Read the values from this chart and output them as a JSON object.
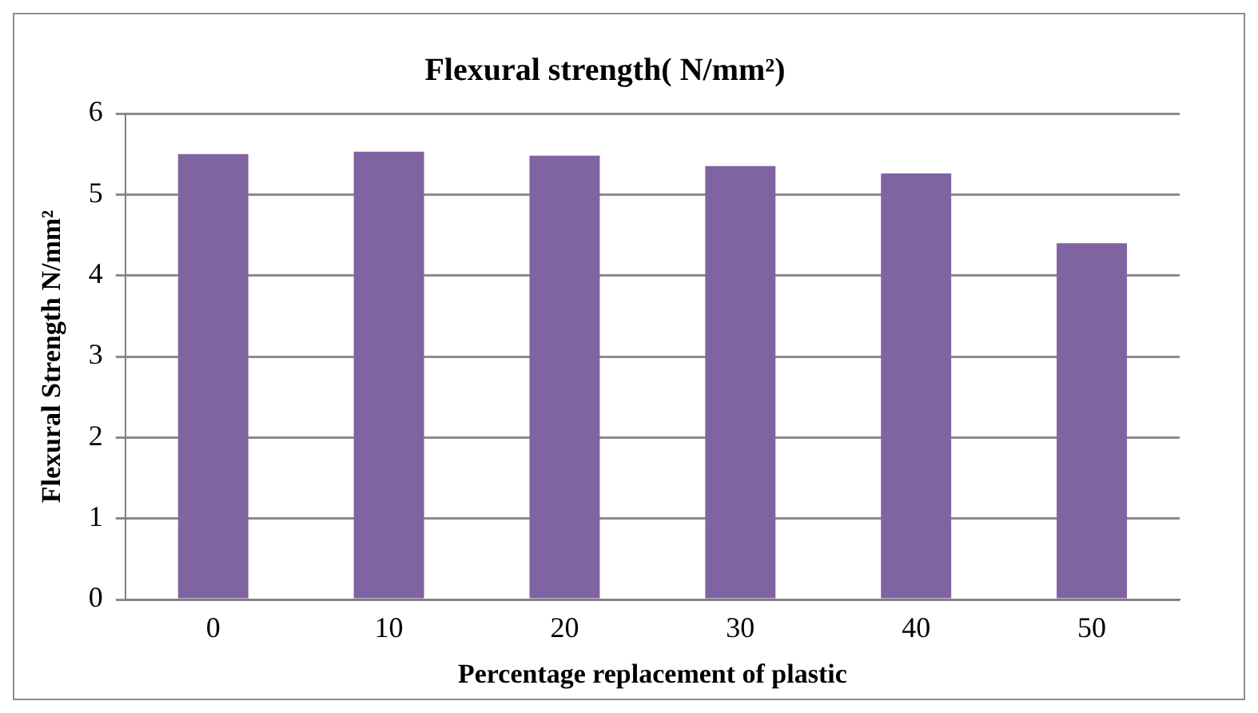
{
  "chart_data": {
    "type": "bar",
    "title": "Flexural strength( N/mm²)",
    "xlabel": "Percentage replacement of plastic",
    "ylabel": "Flexural Strength N/mm²",
    "categories": [
      "0",
      "10",
      "20",
      "30",
      "40",
      "50"
    ],
    "values": [
      5.5,
      5.53,
      5.48,
      5.35,
      5.26,
      4.4
    ],
    "color": "#8064a2",
    "ylim": [
      0,
      6
    ],
    "yticks": [
      0,
      1,
      2,
      3,
      4,
      5,
      6
    ],
    "grid": "y"
  }
}
